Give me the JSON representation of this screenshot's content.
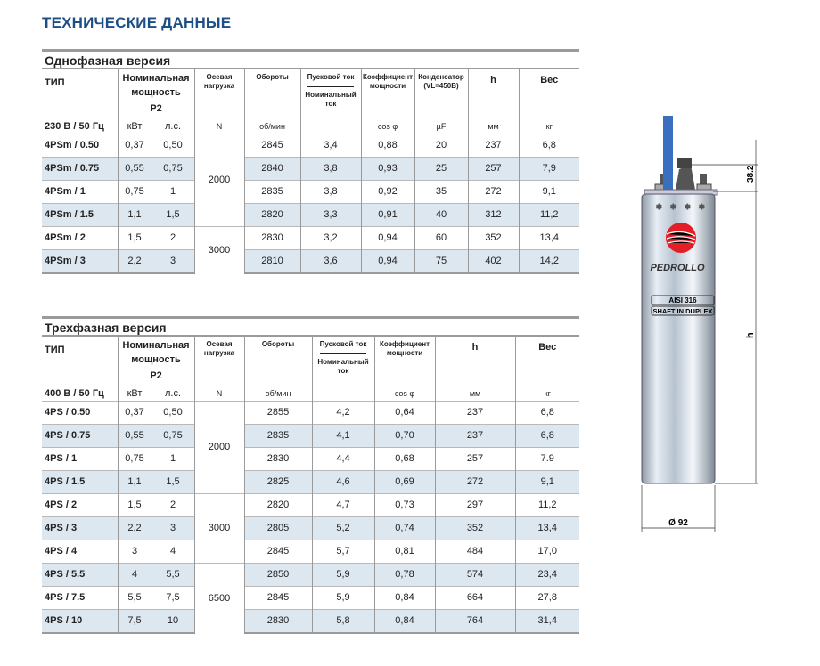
{
  "page_title": "ТЕХНИЧЕСКИЕ ДАННЫЕ",
  "single_phase": {
    "section_title": "Однофазная версия",
    "headers": {
      "type": "ТИП",
      "power": "Номинальная мощность",
      "p2": "P2",
      "axial": "Осевая нагрузка",
      "rpm": "Обороты",
      "start_current": "Пусковой ток",
      "nominal_current": "Номинальный ток",
      "pf": "Коэффициент мощности",
      "capacitor": "Конденсатор (VL=450В)",
      "h": "h",
      "weight": "Вес"
    },
    "units": {
      "voltage": "230 В / 50 Гц",
      "kw": "кВт",
      "hp": "л.с.",
      "axial": "N",
      "rpm": "об/мин",
      "pf": "cos φ",
      "capacitor": "µF",
      "h": "мм",
      "weight": "кг"
    },
    "rows": [
      [
        "4PSm / 0.50",
        "0,37",
        "0,50",
        "2845",
        "3,4",
        "0,88",
        "20",
        "237",
        "6,8"
      ],
      [
        "4PSm / 0.75",
        "0,55",
        "0,75",
        "2840",
        "3,8",
        "0,93",
        "25",
        "257",
        "7,9"
      ],
      [
        "4PSm / 1",
        "0,75",
        "1",
        "2835",
        "3,8",
        "0,92",
        "35",
        "272",
        "9,1"
      ],
      [
        "4PSm / 1.5",
        "1,1",
        "1,5",
        "2820",
        "3,3",
        "0,91",
        "40",
        "312",
        "11,2"
      ],
      [
        "4PSm / 2",
        "1,5",
        "2",
        "2830",
        "3,2",
        "0,94",
        "60",
        "352",
        "13,4"
      ],
      [
        "4PSm / 3",
        "2,2",
        "3",
        "2810",
        "3,6",
        "0,94",
        "75",
        "402",
        "14,2"
      ]
    ],
    "axial_groups": [
      {
        "value": "2000",
        "rows": 4
      },
      {
        "value": "3000",
        "rows": 2
      }
    ]
  },
  "three_phase": {
    "section_title": "Трехфазная версия",
    "headers": {
      "type": "ТИП",
      "power": "Номинальная мощность",
      "p2": "P2",
      "axial": "Осевая нагрузка",
      "rpm": "Обороты",
      "start_current": "Пусковой ток",
      "nominal_current": "Номинальный ток",
      "pf": "Коэффициент мощности",
      "h": "h",
      "weight": "Вес"
    },
    "units": {
      "voltage": "400 В / 50 Гц",
      "kw": "кВт",
      "hp": "л.с.",
      "axial": "N",
      "rpm": "об/мин",
      "pf": "cos φ",
      "h": "мм",
      "weight": "кг"
    },
    "rows": [
      [
        "4PS / 0.50",
        "0,37",
        "0,50",
        "2855",
        "4,2",
        "0,64",
        "237",
        "6,8"
      ],
      [
        "4PS / 0.75",
        "0,55",
        "0,75",
        "2835",
        "4,1",
        "0,70",
        "237",
        "6,8"
      ],
      [
        "4PS / 1",
        "0,75",
        "1",
        "2830",
        "4,4",
        "0,68",
        "257",
        "7.9"
      ],
      [
        "4PS / 1.5",
        "1,1",
        "1,5",
        "2825",
        "4,6",
        "0,69",
        "272",
        "9,1"
      ],
      [
        "4PS / 2",
        "1,5",
        "2",
        "2820",
        "4,7",
        "0,73",
        "297",
        "11,2"
      ],
      [
        "4PS / 3",
        "2,2",
        "3",
        "2805",
        "5,2",
        "0,74",
        "352",
        "13,4"
      ],
      [
        "4PS / 4",
        "3",
        "4",
        "2845",
        "5,7",
        "0,81",
        "484",
        "17,0"
      ],
      [
        "4PS / 5.5",
        "4",
        "5,5",
        "2850",
        "5,9",
        "0,78",
        "574",
        "23,4"
      ],
      [
        "4PS / 7.5",
        "5,5",
        "7,5",
        "2845",
        "5,9",
        "0,84",
        "664",
        "27,8"
      ],
      [
        "4PS / 10",
        "7,5",
        "10",
        "2830",
        "5,8",
        "0,84",
        "764",
        "31,4"
      ]
    ],
    "axial_groups": [
      {
        "value": "2000",
        "rows": 4
      },
      {
        "value": "3000",
        "rows": 3
      },
      {
        "value": "6500",
        "rows": 3
      }
    ]
  },
  "drawing": {
    "brand": "PEDROLLO",
    "plate1": "AISI 316",
    "plate2": "SHAFT IN DUPLEX",
    "dim_top": "38.2",
    "dim_h": "h",
    "dim_diameter": "Ø 92"
  },
  "colors": {
    "title": "#1d4f86",
    "row_shade": "#dde7f0",
    "cable": "#3a6fc0",
    "logo": "#e41e26"
  }
}
